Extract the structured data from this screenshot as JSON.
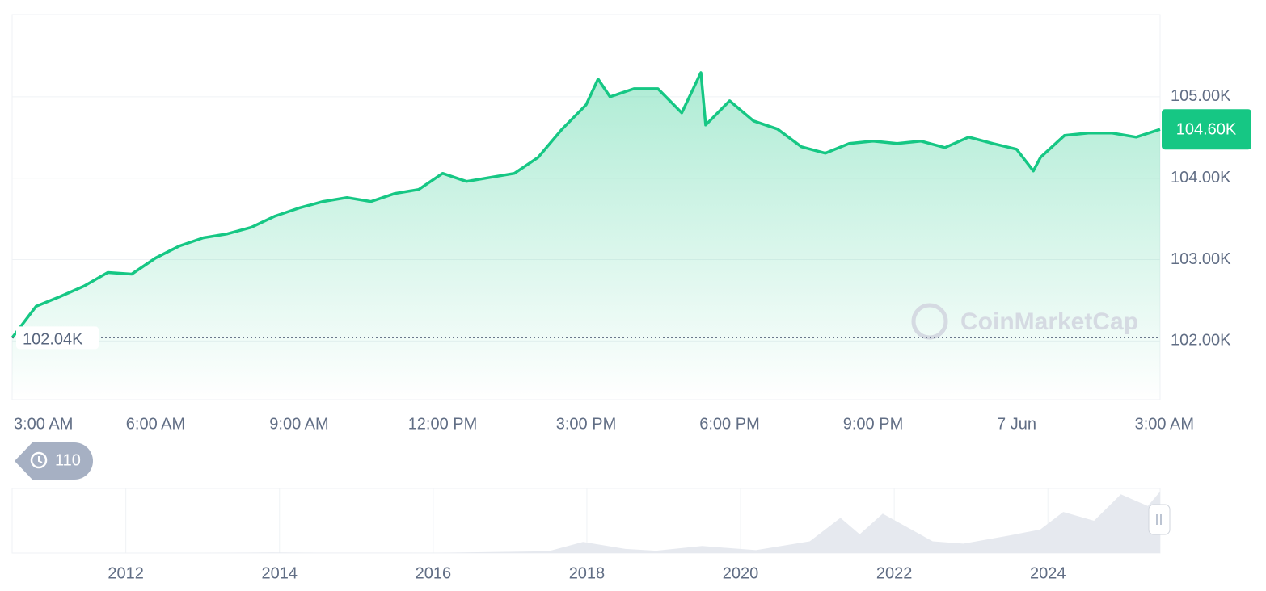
{
  "chart_data": [
    {
      "type": "line",
      "color": "#16c784",
      "x": [
        3,
        3.5,
        4,
        4.5,
        5,
        5.5,
        6,
        6.5,
        7,
        7.5,
        8,
        8.5,
        9,
        9.5,
        10,
        10.5,
        11,
        11.5,
        12,
        12.5,
        13,
        13.5,
        14,
        14.5,
        15,
        15.25,
        15.5,
        16,
        16.5,
        17,
        17.4,
        17.5,
        18,
        18.5,
        19,
        19.5,
        20,
        20.5,
        21,
        21.5,
        22,
        22.5,
        23,
        23.5,
        24,
        24.35,
        24.5,
        25,
        25.5,
        26,
        26.5,
        27
      ],
      "values": [
        102040,
        102426,
        102545,
        102674,
        102842,
        102822,
        103020,
        103168,
        103268,
        103317,
        103396,
        103535,
        103634,
        103713,
        103762,
        103713,
        103812,
        103861,
        104059,
        103960,
        104010,
        104059,
        104257,
        104604,
        104901,
        105218,
        105000,
        105099,
        105099,
        104802,
        105297,
        104653,
        104950,
        104703,
        104604,
        104386,
        104307,
        104426,
        104455,
        104426,
        104455,
        104376,
        104505,
        104426,
        104356,
        104089,
        104257,
        104525,
        104554,
        104554,
        104505,
        104600
      ],
      "xlim": [
        3,
        27
      ],
      "xticks": [
        {
          "value": 3,
          "label": "3:00 AM"
        },
        {
          "value": 6,
          "label": "6:00 AM"
        },
        {
          "value": 9,
          "label": "9:00 AM"
        },
        {
          "value": 12,
          "label": "12:00 PM"
        },
        {
          "value": 15,
          "label": "3:00 PM"
        },
        {
          "value": 18,
          "label": "6:00 PM"
        },
        {
          "value": 21,
          "label": "9:00 PM"
        },
        {
          "value": 24,
          "label": "7 Jun"
        },
        {
          "value": 27,
          "label": "3:00 AM"
        }
      ],
      "ylim": [
        101280,
        106010
      ],
      "yticks": [
        {
          "value": 102000,
          "label": "102.00K"
        },
        {
          "value": 103000,
          "label": "103.00K"
        },
        {
          "value": 104000,
          "label": "104.00K"
        },
        {
          "value": 105000,
          "label": "105.00K"
        }
      ],
      "grid": true,
      "open": {
        "value": 102040,
        "label": "102.04K"
      },
      "last": {
        "value": 104600,
        "label": "104.60K"
      },
      "watermark": "CoinMarketCap",
      "history_count": 110
    },
    {
      "type": "area",
      "color": "#e6e9ef",
      "x": [
        2010.52,
        2013.0,
        2013.9,
        2014.5,
        2016.0,
        2017.5,
        2017.95,
        2018.5,
        2018.9,
        2019.5,
        2020.2,
        2020.9,
        2021.3,
        2021.55,
        2021.85,
        2022.5,
        2022.9,
        2023.5,
        2023.9,
        2024.2,
        2024.6,
        2024.95,
        2025.3,
        2025.46
      ],
      "values": [
        0,
        100,
        1000,
        500,
        400,
        3000,
        19000,
        7000,
        4000,
        12000,
        5000,
        20000,
        60000,
        32000,
        67000,
        20000,
        16000,
        30000,
        40000,
        70000,
        55000,
        100000,
        80000,
        104600
      ],
      "xlim": [
        2010.52,
        2025.46
      ],
      "ylim": [
        0,
        110000
      ],
      "xticks": [
        2012,
        2014,
        2016,
        2018,
        2020,
        2022,
        2024
      ]
    }
  ]
}
